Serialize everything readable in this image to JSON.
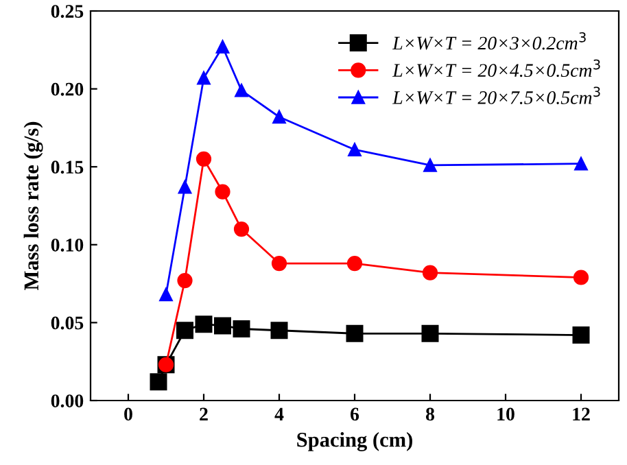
{
  "chart_data": {
    "type": "line",
    "xlabel": "Spacing (cm)",
    "ylabel": "Mass loss rate (g/s)",
    "xlim": [
      -1,
      13
    ],
    "xticks": [
      0,
      2,
      4,
      6,
      8,
      10,
      12
    ],
    "ylim": [
      0,
      0.25
    ],
    "yticks": [
      {
        "value": 0,
        "label": "0.00"
      },
      0.05,
      {
        "value": 0.1,
        "label": "0.10"
      },
      0.15,
      {
        "value": 0.2,
        "label": "0.20"
      },
      0.25
    ],
    "grid": false,
    "legend": "top right",
    "line_style": "solid",
    "series": [
      {
        "name": "L×W×T = 20×3×0.2cm$^{3}$",
        "color": "#000000",
        "marker": "square",
        "x": [
          0.8,
          1,
          1.5,
          2,
          2.5,
          3,
          4,
          6,
          8,
          12
        ],
        "values": [
          0.012,
          0.023,
          0.045,
          0.049,
          0.048,
          0.046,
          0.045,
          0.043,
          0.043,
          0.042
        ]
      },
      {
        "name": "L×W×T = 20×4.5×0.5cm$^{3}$",
        "color": "#ff0000",
        "marker": "circle",
        "x": [
          1,
          1.5,
          2,
          2.5,
          3,
          4,
          6,
          8,
          12
        ],
        "values": [
          0.023,
          0.077,
          0.155,
          0.134,
          0.11,
          0.088,
          0.088,
          0.082,
          0.079
        ]
      },
      {
        "name": "L×W×T = 20×7.5×0.5cm$^{3}$",
        "color": "#0000ff",
        "marker": "triangle",
        "x": [
          1,
          1.5,
          2,
          2.5,
          3,
          4,
          6,
          8,
          12
        ],
        "values": [
          0.068,
          0.137,
          0.207,
          0.227,
          0.199,
          0.182,
          0.161,
          0.151,
          0.152
        ]
      }
    ]
  }
}
